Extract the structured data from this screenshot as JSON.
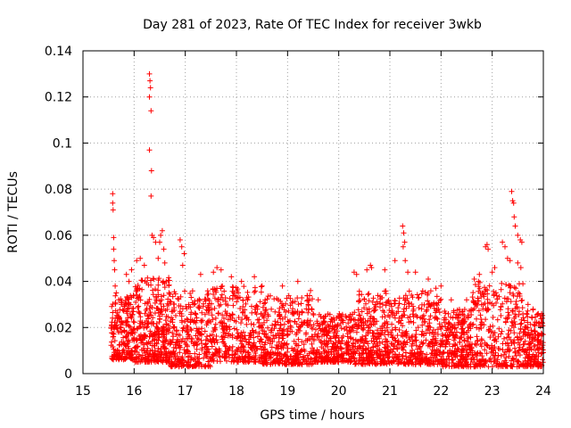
{
  "chart_data": {
    "type": "scatter",
    "title": "Day 281 of 2023, Rate Of TEC Index for receiver 3wkb",
    "xlabel": "GPS time / hours",
    "ylabel": "ROTI / TECUs",
    "xlim": [
      15,
      24
    ],
    "ylim": [
      0,
      0.14
    ],
    "x_ticks": [
      "15",
      "16",
      "17",
      "18",
      "19",
      "20",
      "21",
      "22",
      "23",
      "24"
    ],
    "y_ticks": [
      "0",
      "0.02",
      "0.04",
      "0.06",
      "0.08",
      "0.1",
      "0.12",
      "0.14"
    ],
    "grid": true,
    "marker": "+",
    "marker_color": "#ff0000",
    "series": [
      {
        "name": "ROTI",
        "points": [
          [
            15.58,
            0.078
          ],
          [
            15.58,
            0.074
          ],
          [
            15.59,
            0.071
          ],
          [
            15.6,
            0.059
          ],
          [
            15.6,
            0.054
          ],
          [
            15.61,
            0.049
          ],
          [
            15.62,
            0.045
          ],
          [
            15.63,
            0.038
          ],
          [
            15.65,
            0.035
          ],
          [
            15.7,
            0.032
          ],
          [
            15.75,
            0.03
          ],
          [
            15.85,
            0.043
          ],
          [
            15.9,
            0.04
          ],
          [
            15.95,
            0.045
          ],
          [
            16.05,
            0.049
          ],
          [
            16.12,
            0.05
          ],
          [
            16.2,
            0.047
          ],
          [
            16.3,
            0.13
          ],
          [
            16.31,
            0.127
          ],
          [
            16.32,
            0.124
          ],
          [
            16.3,
            0.12
          ],
          [
            16.33,
            0.114
          ],
          [
            16.3,
            0.097
          ],
          [
            16.34,
            0.088
          ],
          [
            16.33,
            0.077
          ],
          [
            16.35,
            0.06
          ],
          [
            16.38,
            0.059
          ],
          [
            16.42,
            0.057
          ],
          [
            16.52,
            0.06
          ],
          [
            16.55,
            0.062
          ],
          [
            16.5,
            0.057
          ],
          [
            16.58,
            0.054
          ],
          [
            16.47,
            0.05
          ],
          [
            16.6,
            0.048
          ],
          [
            16.9,
            0.058
          ],
          [
            16.93,
            0.055
          ],
          [
            16.98,
            0.052
          ],
          [
            16.95,
            0.047
          ],
          [
            17.3,
            0.043
          ],
          [
            17.55,
            0.044
          ],
          [
            17.62,
            0.046
          ],
          [
            17.7,
            0.045
          ],
          [
            17.9,
            0.042
          ],
          [
            18.1,
            0.04
          ],
          [
            18.35,
            0.042
          ],
          [
            18.5,
            0.038
          ],
          [
            18.9,
            0.038
          ],
          [
            19.2,
            0.04
          ],
          [
            19.45,
            0.036
          ],
          [
            19.6,
            0.032
          ],
          [
            20.3,
            0.044
          ],
          [
            20.35,
            0.043
          ],
          [
            20.55,
            0.045
          ],
          [
            20.62,
            0.047
          ],
          [
            20.64,
            0.046
          ],
          [
            20.9,
            0.045
          ],
          [
            21.1,
            0.049
          ],
          [
            21.25,
            0.064
          ],
          [
            21.27,
            0.061
          ],
          [
            21.29,
            0.057
          ],
          [
            21.26,
            0.055
          ],
          [
            21.3,
            0.049
          ],
          [
            21.35,
            0.044
          ],
          [
            21.5,
            0.044
          ],
          [
            21.75,
            0.041
          ],
          [
            21.9,
            0.037
          ],
          [
            22.0,
            0.038
          ],
          [
            22.2,
            0.032
          ],
          [
            22.5,
            0.032
          ],
          [
            22.65,
            0.041
          ],
          [
            22.75,
            0.043
          ],
          [
            22.87,
            0.055
          ],
          [
            22.9,
            0.056
          ],
          [
            22.92,
            0.054
          ],
          [
            23.0,
            0.044
          ],
          [
            23.05,
            0.046
          ],
          [
            23.2,
            0.057
          ],
          [
            23.25,
            0.055
          ],
          [
            23.3,
            0.05
          ],
          [
            23.35,
            0.049
          ],
          [
            23.38,
            0.079
          ],
          [
            23.4,
            0.075
          ],
          [
            23.42,
            0.074
          ],
          [
            23.43,
            0.068
          ],
          [
            23.45,
            0.064
          ],
          [
            23.5,
            0.06
          ],
          [
            23.55,
            0.058
          ],
          [
            23.58,
            0.057
          ],
          [
            23.5,
            0.048
          ],
          [
            23.56,
            0.046
          ],
          [
            23.6,
            0.039
          ],
          [
            23.7,
            0.03
          ],
          [
            23.8,
            0.028
          ],
          [
            23.9,
            0.026
          ],
          [
            23.98,
            0.024
          ]
        ],
        "bands": [
          {
            "x": [
              15.55,
              16.0
            ],
            "lo": 0.006,
            "hi": 0.034,
            "density": 220
          },
          {
            "x": [
              16.0,
              16.7
            ],
            "lo": 0.005,
            "hi": 0.042,
            "density": 330
          },
          {
            "x": [
              16.7,
              17.5
            ],
            "lo": 0.003,
            "hi": 0.036,
            "density": 300
          },
          {
            "x": [
              17.5,
              18.5
            ],
            "lo": 0.005,
            "hi": 0.038,
            "density": 340
          },
          {
            "x": [
              18.5,
              19.5
            ],
            "lo": 0.004,
            "hi": 0.034,
            "density": 360
          },
          {
            "x": [
              19.5,
              20.3
            ],
            "lo": 0.005,
            "hi": 0.026,
            "density": 320
          },
          {
            "x": [
              20.3,
              21.0
            ],
            "lo": 0.004,
            "hi": 0.036,
            "density": 300
          },
          {
            "x": [
              21.0,
              22.0
            ],
            "lo": 0.004,
            "hi": 0.036,
            "density": 360
          },
          {
            "x": [
              22.0,
              22.6
            ],
            "lo": 0.003,
            "hi": 0.028,
            "density": 260
          },
          {
            "x": [
              22.6,
              23.6
            ],
            "lo": 0.003,
            "hi": 0.04,
            "density": 320
          },
          {
            "x": [
              23.6,
              24.0
            ],
            "lo": 0.003,
            "hi": 0.028,
            "density": 180
          }
        ]
      }
    ]
  }
}
